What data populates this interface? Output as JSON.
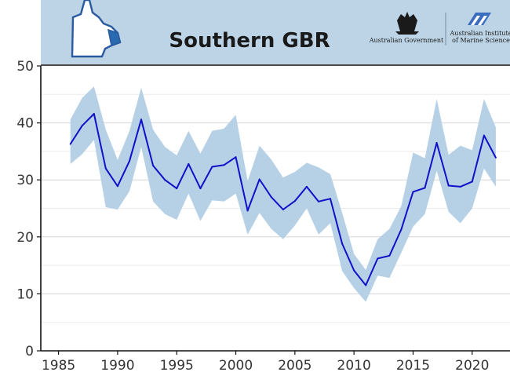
{
  "header": {
    "title": "Southern GBR",
    "logo_gov_text": "Australian Government",
    "logo_aims_line1": "Australian Institute",
    "logo_aims_line2": "of Marine Science",
    "band_color": "#bcd4e6"
  },
  "chart_data": {
    "type": "line",
    "title": "Southern GBR",
    "xlabel": "",
    "ylabel": "",
    "xlim": [
      1983.5,
      2023.2
    ],
    "ylim": [
      0,
      50
    ],
    "xticks": [
      1985,
      1990,
      1995,
      2000,
      2005,
      2010,
      2015,
      2020
    ],
    "yticks": [
      0,
      10,
      20,
      30,
      40,
      50
    ],
    "grid": true,
    "line_color": "#1010c8",
    "band_color": "#b6d0e6",
    "series": [
      {
        "x": [
          1986,
          1987,
          1988,
          1989,
          1990,
          1991,
          1992,
          1993,
          1994,
          1995,
          1996,
          1997,
          1998,
          1999,
          2000,
          2001,
          2002,
          2003,
          2004,
          2005,
          2006,
          2007,
          2008,
          2009,
          2010,
          2011,
          2012,
          2013,
          2014,
          2015,
          2016,
          2017,
          2018,
          2019,
          2020,
          2021,
          2022
        ],
        "y": [
          36.3,
          39.5,
          41.6,
          32.0,
          28.9,
          33.3,
          40.6,
          32.5,
          30.0,
          28.5,
          32.8,
          28.5,
          32.3,
          32.6,
          34.0,
          24.6,
          30.1,
          27.0,
          24.8,
          26.3,
          28.8,
          26.2,
          26.7,
          18.8,
          14.1,
          11.5,
          16.2,
          16.7,
          21.3,
          27.9,
          28.6,
          36.5,
          29.0,
          28.8,
          29.7,
          37.8,
          33.9
        ],
        "lower": [
          32.8,
          34.5,
          37.0,
          25.2,
          24.8,
          28.0,
          35.8,
          26.2,
          24.0,
          23.0,
          27.6,
          22.8,
          26.4,
          26.2,
          27.6,
          20.4,
          24.2,
          21.4,
          19.6,
          22.0,
          25.0,
          20.4,
          22.4,
          14.0,
          11.0,
          8.6,
          13.2,
          12.8,
          17.2,
          21.8,
          24.0,
          31.6,
          24.4,
          22.4,
          25.0,
          32.0,
          28.8
        ],
        "upper": [
          40.6,
          44.4,
          46.4,
          38.8,
          33.5,
          38.6,
          46.2,
          38.8,
          35.8,
          34.3,
          38.6,
          34.6,
          38.6,
          39.0,
          41.4,
          29.8,
          36.0,
          33.6,
          30.4,
          31.4,
          33.0,
          32.2,
          31.0,
          24.2,
          17.0,
          14.2,
          19.6,
          21.4,
          25.4,
          34.8,
          33.8,
          44.2,
          34.4,
          36.0,
          35.2,
          44.2,
          39.2
        ]
      }
    ]
  }
}
